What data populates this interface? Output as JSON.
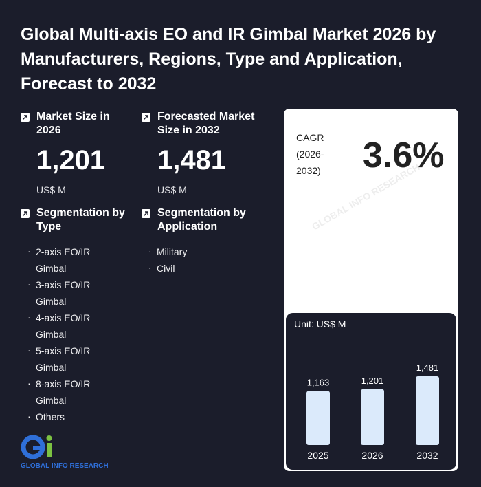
{
  "title": "Global Multi-axis EO and IR Gimbal Market 2026 by Manufacturers, Regions, Type and Application, Forecast to 2032",
  "market_size": {
    "label": "Market Size in 2026",
    "value": "1,201",
    "unit": "US$ M"
  },
  "forecast_size": {
    "label": "Forecasted Market Size in 2032",
    "value": "1,481",
    "unit": "US$ M"
  },
  "segmentation_type": {
    "label": "Segmentation by Type",
    "items": [
      "2-axis EO/IR Gimbal",
      "3-axis EO/IR Gimbal",
      "4-axis EO/IR Gimbal",
      "5-axis EO/IR Gimbal",
      "8-axis EO/IR Gimbal",
      "Others"
    ]
  },
  "segmentation_app": {
    "label": "Segmentation by Application",
    "items": [
      "Military",
      "Civil"
    ]
  },
  "cagr": {
    "label": "CAGR (2026-2032)",
    "value": "3.6%"
  },
  "logo": {
    "text": "GLOBAL INFO RESEARCH",
    "mark": "Gi"
  },
  "watermark": "GLOBAL INFO RESEARCH",
  "chart_data": {
    "type": "bar",
    "unit_label": "Unit: US$ M",
    "categories": [
      "2025",
      "2026",
      "2032"
    ],
    "values": [
      1163,
      1201,
      1481
    ],
    "value_labels": [
      "1,163",
      "1,201",
      "1,481"
    ],
    "bar_color": "#dbeafb"
  }
}
